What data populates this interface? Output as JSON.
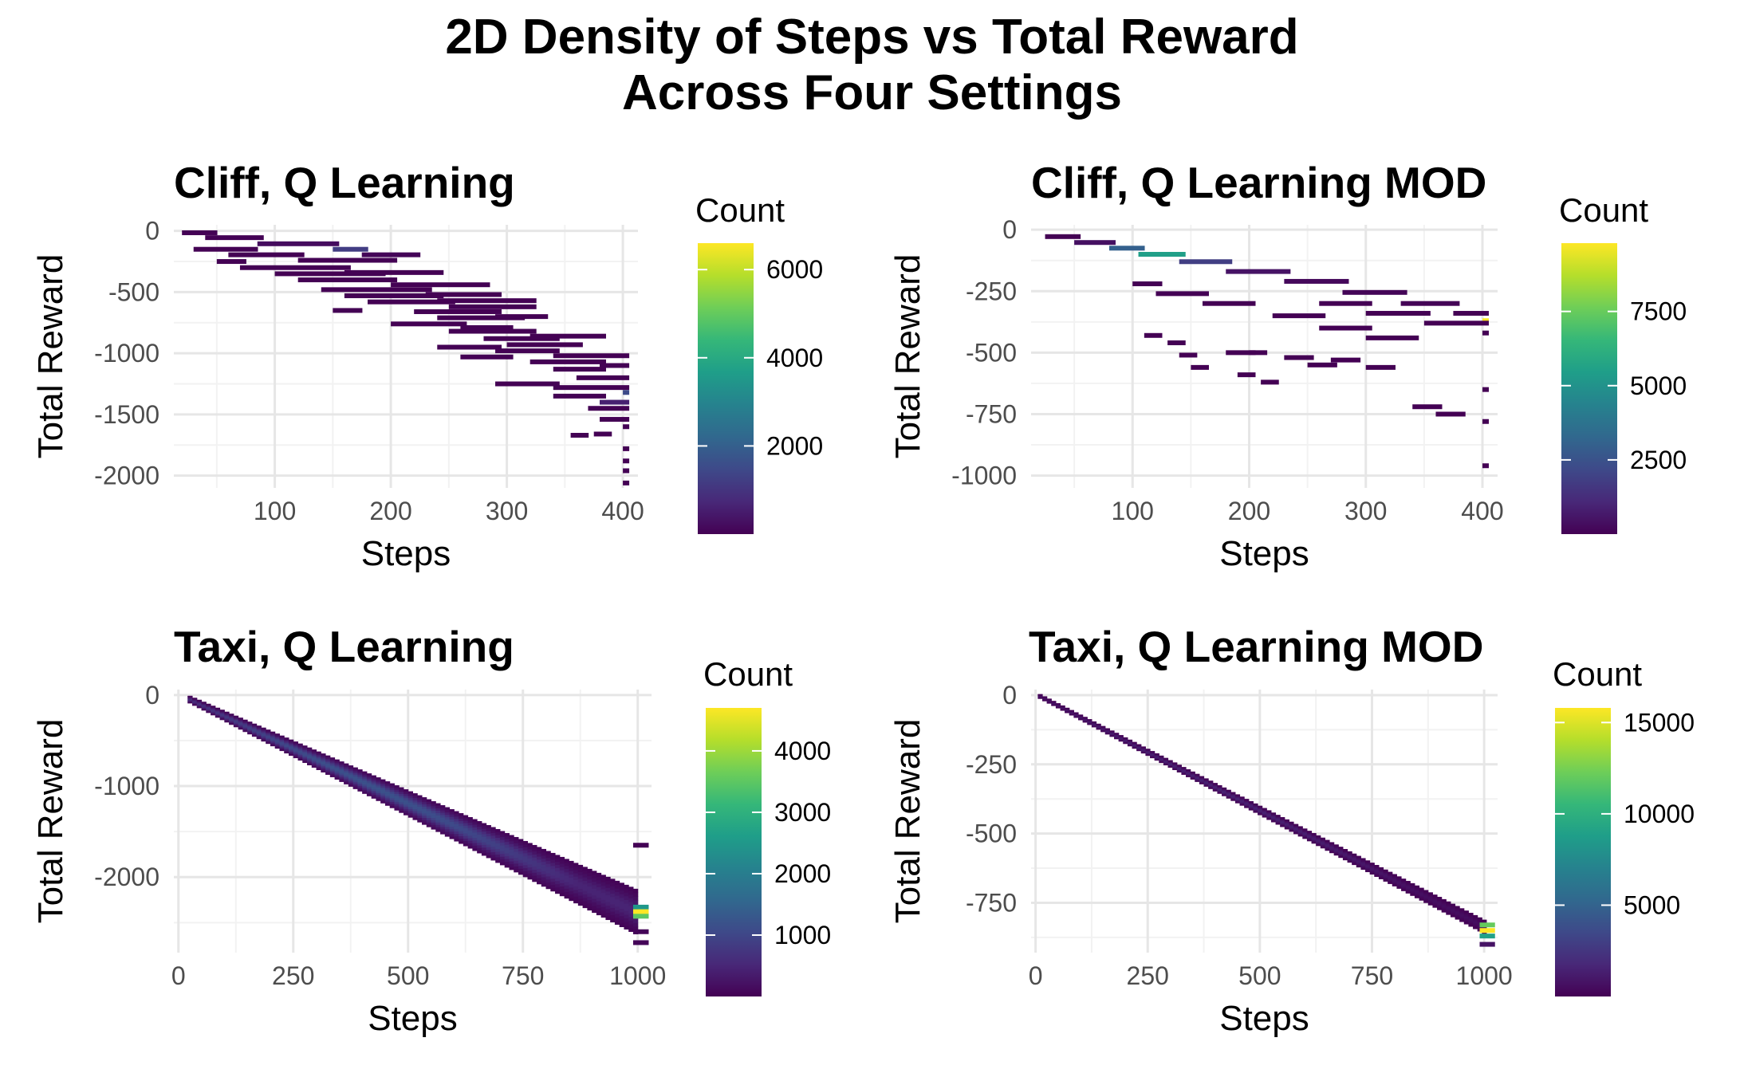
{
  "title_line1": "2D Density of Steps vs Total Reward",
  "title_line2": "Across Four Settings",
  "chart_data": [
    {
      "type": "heatmap",
      "title": "Cliff, Q Learning",
      "xlabel": "Steps",
      "ylabel": "Total Reward",
      "xlim": [
        13,
        413
      ],
      "ylim": [
        -2100,
        50
      ],
      "xticks": [
        100,
        200,
        300,
        400
      ],
      "yticks": [
        0,
        -500,
        -1000,
        -1500,
        -2000
      ],
      "xtick_labels": [
        "100",
        "200",
        "300",
        "400"
      ],
      "ytick_labels": [
        "0",
        "-500",
        "-1000",
        "-1500",
        "-2000"
      ],
      "legend_title": "Count",
      "colorbar_range": [
        0,
        6600
      ],
      "colorbar_ticks": [
        2000,
        4000,
        6000
      ],
      "colorbar_tick_labels": [
        "2000",
        "4000",
        "6000"
      ],
      "bins": [
        [
          [
            20,
            45,
            -15,
            15
          ]
        ],
        [
          [
            40,
            85,
            -55,
            25
          ],
          [
            85,
            150,
            -105,
            200
          ],
          [
            150,
            175,
            -150,
            1200
          ],
          [
            175,
            220,
            -195,
            80
          ]
        ],
        [
          [
            30,
            80,
            -150,
            10
          ]
        ],
        [
          [
            60,
            120,
            -195,
            10
          ],
          [
            120,
            200,
            -240,
            10
          ]
        ],
        [
          [
            50,
            70,
            -250,
            10
          ]
        ],
        [
          [
            70,
            160,
            -300,
            10
          ],
          [
            160,
            240,
            -340,
            10
          ]
        ],
        [
          [
            100,
            190,
            -350,
            10
          ]
        ],
        [
          [
            120,
            200,
            -400,
            10
          ],
          [
            200,
            280,
            -440,
            10
          ]
        ],
        [
          [
            140,
            230,
            -480,
            10
          ],
          [
            230,
            290,
            -520,
            10
          ]
        ],
        [
          [
            160,
            240,
            -530,
            10
          ],
          [
            240,
            320,
            -570,
            10
          ]
        ],
        [
          [
            180,
            250,
            -580,
            10
          ],
          [
            250,
            320,
            -620,
            10
          ]
        ],
        [
          [
            150,
            170,
            -650,
            10
          ]
        ],
        [
          [
            220,
            290,
            -660,
            10
          ],
          [
            290,
            330,
            -700,
            10
          ]
        ],
        [
          [
            240,
            310,
            -710,
            10
          ]
        ],
        [
          [
            200,
            260,
            -760,
            10
          ],
          [
            260,
            300,
            -790,
            10
          ]
        ],
        [
          [
            250,
            320,
            -820,
            10
          ],
          [
            320,
            380,
            -860,
            10
          ]
        ],
        [
          [
            280,
            340,
            -880,
            10
          ]
        ],
        [
          [
            300,
            360,
            -930,
            10
          ]
        ],
        [
          [
            240,
            290,
            -950,
            10
          ],
          [
            290,
            340,
            -980,
            10
          ],
          [
            340,
            400,
            -1020,
            10
          ]
        ],
        [
          [
            260,
            300,
            -1030,
            10
          ]
        ],
        [
          [
            320,
            380,
            -1070,
            10
          ],
          [
            380,
            400,
            -1100,
            10
          ]
        ],
        [
          [
            340,
            380,
            -1130,
            10
          ]
        ],
        [
          [
            360,
            400,
            -1200,
            10
          ]
        ],
        [
          [
            290,
            340,
            -1250,
            10
          ],
          [
            340,
            400,
            -1280,
            10
          ],
          [
            400,
            400,
            -1320,
            1500
          ]
        ],
        [
          [
            340,
            380,
            -1350,
            10
          ],
          [
            380,
            400,
            -1400,
            600
          ]
        ],
        [
          [
            370,
            400,
            -1450,
            10
          ]
        ],
        [
          [
            380,
            400,
            -1540,
            10
          ],
          [
            400,
            400,
            -1600,
            20
          ]
        ],
        [
          [
            355,
            365,
            -1670,
            10
          ],
          [
            375,
            385,
            -1660,
            10
          ]
        ],
        [
          [
            400,
            400,
            -1780,
            10
          ],
          [
            400,
            400,
            -1880,
            10
          ],
          [
            400,
            400,
            -1960,
            10
          ],
          [
            400,
            400,
            -2060,
            10
          ]
        ]
      ]
    },
    {
      "type": "heatmap",
      "title": "Cliff,  Q Learning MOD",
      "xlabel": "Steps",
      "ylabel": "Total Reward",
      "xlim": [
        13,
        413
      ],
      "ylim": [
        -1050,
        20
      ],
      "xticks": [
        100,
        200,
        300,
        400
      ],
      "yticks": [
        0,
        -250,
        -500,
        -750,
        -1000
      ],
      "xtick_labels": [
        "100",
        "200",
        "300",
        "400"
      ],
      "ytick_labels": [
        "0",
        "-250",
        "-500",
        "-750",
        "-1000"
      ],
      "legend_title": "Count",
      "colorbar_range": [
        0,
        9800
      ],
      "colorbar_ticks": [
        2500,
        5000,
        7500
      ],
      "colorbar_tick_labels": [
        "2500",
        "5000",
        "7500"
      ],
      "bins": [
        [
          [
            25,
            50,
            -28,
            15
          ],
          [
            50,
            80,
            -52,
            400
          ],
          [
            80,
            105,
            -75,
            3000
          ],
          [
            105,
            140,
            -100,
            5500
          ],
          [
            140,
            180,
            -130,
            1800
          ],
          [
            180,
            230,
            -170,
            500
          ],
          [
            230,
            280,
            -210,
            200
          ],
          [
            280,
            330,
            -255,
            100
          ],
          [
            330,
            375,
            -300,
            50
          ],
          [
            375,
            400,
            -340,
            10
          ],
          [
            400,
            400,
            -370,
            9800
          ]
        ],
        [
          [
            260,
            300,
            -300,
            10
          ],
          [
            300,
            350,
            -340,
            10
          ],
          [
            350,
            400,
            -380,
            10
          ],
          [
            400,
            400,
            -420,
            10
          ]
        ],
        [
          [
            100,
            120,
            -220,
            10
          ],
          [
            120,
            160,
            -260,
            10
          ],
          [
            160,
            200,
            -300,
            10
          ]
        ],
        [
          [
            220,
            260,
            -350,
            10
          ],
          [
            260,
            300,
            -400,
            10
          ],
          [
            300,
            340,
            -440,
            10
          ]
        ],
        [
          [
            110,
            120,
            -430,
            10
          ],
          [
            130,
            140,
            -460,
            10
          ],
          [
            140,
            150,
            -510,
            10
          ],
          [
            150,
            160,
            -560,
            10
          ],
          [
            180,
            200,
            -500,
            10
          ],
          [
            190,
            200,
            -590,
            10
          ],
          [
            200,
            210,
            -500,
            10
          ],
          [
            210,
            220,
            -620,
            10
          ]
        ],
        [
          [
            230,
            250,
            -520,
            10
          ],
          [
            250,
            270,
            -550,
            10
          ],
          [
            270,
            290,
            -530,
            10
          ],
          [
            300,
            320,
            -560,
            10
          ],
          [
            340,
            360,
            -720,
            10
          ],
          [
            360,
            380,
            -750,
            10
          ],
          [
            400,
            400,
            -650,
            10
          ],
          [
            400,
            400,
            -780,
            10
          ],
          [
            400,
            400,
            -960,
            10
          ]
        ]
      ]
    },
    {
      "type": "heatmap",
      "title": "Taxi, Q Learning",
      "xlabel": "Steps",
      "ylabel": "Total Reward",
      "xlim": [
        -10,
        1030
      ],
      "ylim": [
        -2830,
        60
      ],
      "xticks": [
        0,
        250,
        500,
        750,
        1000
      ],
      "yticks": [
        0,
        -1000,
        -2000
      ],
      "xtick_labels": [
        "0",
        "250",
        "500",
        "750",
        "1000"
      ],
      "ytick_labels": [
        "0",
        "-1000",
        "-2000"
      ],
      "legend_title": "Count",
      "colorbar_range": [
        0,
        4700
      ],
      "colorbar_ticks": [
        1000,
        2000,
        3000,
        4000
      ],
      "colorbar_tick_labels": [
        "1000",
        "2000",
        "3000",
        "4000"
      ],
      "band": {
        "x_start": 20,
        "x_end": 1000,
        "slope": -2.4,
        "halfwidth_start": 40,
        "halfwidth_end": 250,
        "peak": 1200
      },
      "bins": [
        [
          [
            990,
            1010,
            -1650,
            10
          ],
          [
            990,
            1010,
            -2330,
            2500
          ],
          [
            990,
            1010,
            -2380,
            4700
          ],
          [
            990,
            1010,
            -2430,
            3500
          ],
          [
            990,
            1010,
            -2600,
            60
          ],
          [
            990,
            1010,
            -2720,
            60
          ]
        ]
      ]
    },
    {
      "type": "heatmap",
      "title": "Taxi, Q Learning MOD",
      "xlabel": "Steps",
      "ylabel": "Total Reward",
      "xlim": [
        -10,
        1030
      ],
      "ylim": [
        -930,
        20
      ],
      "xticks": [
        0,
        250,
        500,
        750,
        1000
      ],
      "yticks": [
        0,
        -250,
        -500,
        -750
      ],
      "xtick_labels": [
        "0",
        "250",
        "500",
        "750",
        "1000"
      ],
      "ytick_labels": [
        "0",
        "-250",
        "-500",
        "-750"
      ],
      "legend_title": "Count",
      "colorbar_range": [
        0,
        15800
      ],
      "colorbar_ticks": [
        5000,
        10000,
        15000
      ],
      "colorbar_tick_labels": [
        "5000",
        "10000",
        "15000"
      ],
      "band": {
        "x_start": 5,
        "x_end": 1000,
        "slope": -0.84,
        "halfwidth_start": 8,
        "halfwidth_end": 25,
        "peak": 1500
      },
      "bins": [
        [
          [
            990,
            1010,
            -830,
            12000
          ],
          [
            990,
            1010,
            -850,
            15800
          ],
          [
            990,
            1010,
            -870,
            9000
          ],
          [
            990,
            1010,
            -900,
            800
          ]
        ]
      ]
    }
  ]
}
